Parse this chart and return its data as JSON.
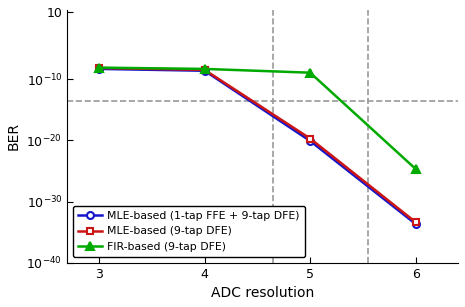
{
  "x": [
    3,
    4,
    5,
    6
  ],
  "blue_y": [
    5e-09,
    2.5e-09,
    8e-21,
    2e-34
  ],
  "red_y": [
    7e-09,
    3.5e-09,
    2e-20,
    4e-34
  ],
  "green_y": [
    8e-09,
    5e-09,
    1.2e-09,
    2e-25
  ],
  "blue_label": "MLE-based (1-tap FFE + 9-tap DFE)",
  "red_label": "MLE-based (9-tap DFE)",
  "green_label": "FIR-based (9-tap DFE)",
  "xlabel": "ADC resolution",
  "ylabel": "BER",
  "ylim_bottom": 1e-40,
  "ylim_top": 20,
  "xlim": [
    2.7,
    6.4
  ],
  "hline_y": 3e-14,
  "vline1_x": 4.65,
  "vline2_x": 5.55,
  "blue_color": "#1515cc",
  "red_color": "#cc1515",
  "green_color": "#00aa00",
  "hline_color": "#999999",
  "vline_color": "#999999",
  "yticks": [
    10,
    1e-10,
    1e-20,
    1e-30,
    1e-40
  ],
  "ytick_labels": [
    "10",
    "10$^{-10}$",
    "10$^{-20}$",
    "10$^{-30}$",
    "10$^{-40}$"
  ]
}
